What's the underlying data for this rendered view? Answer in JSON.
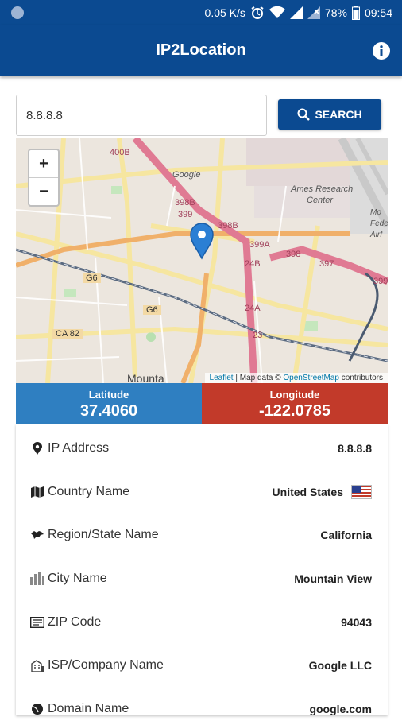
{
  "status_bar": {
    "speed": "0.05 K/s",
    "battery": "78%",
    "time": "09:54"
  },
  "app_bar": {
    "title": "IP2Location",
    "info_icon": "info-icon"
  },
  "search": {
    "value": "8.8.8.8",
    "button_label": "SEARCH",
    "button_icon": "search-icon"
  },
  "map": {
    "zoom_in": "+",
    "zoom_out": "−",
    "labels": {
      "google": "Google",
      "ames": "Ames Research",
      "center": "Center",
      "g6a": "G6",
      "g6b": "G6",
      "ca82": "CA 82",
      "city": "Mounta",
      "moffett1": "Mo",
      "moffett2": "Fede",
      "moffett3": "Airf",
      "r400b": "400B",
      "r398b": "398B",
      "r399": "399",
      "r398b2": "398B",
      "r399a": "399A",
      "r398": "398",
      "r397": "397",
      "r24b": "24B",
      "r24a": "24A",
      "r23": "23",
      "r399b": "399"
    },
    "attribution": {
      "leaflet": "Leaflet",
      "sep": " | Map data © ",
      "osm": "OpenStreetMap",
      "contrib": " contributors"
    }
  },
  "coordinates": {
    "latitude_label": "Latitude",
    "latitude_value": "37.4060",
    "longitude_label": "Longitude",
    "longitude_value": "-122.0785",
    "latitude_color": "#2f7fc1",
    "longitude_color": "#c23a2a"
  },
  "details": [
    {
      "label": "IP Address",
      "value": "8.8.8.8",
      "icon": "map-marker-icon"
    },
    {
      "label": "Country Name",
      "value": "United States",
      "icon": "map-icon"
    },
    {
      "label": "Region/State Name",
      "value": "California",
      "icon": "globe-icon"
    },
    {
      "label": "City Name",
      "value": "Mountain View",
      "icon": "city-icon"
    },
    {
      "label": "ZIP Code",
      "value": "94043",
      "icon": "postcode-icon"
    },
    {
      "label": "ISP/Company Name",
      "value": "Google LLC",
      "icon": "building-icon"
    },
    {
      "label": "Domain Name",
      "value": "google.com",
      "icon": "domain-icon"
    }
  ],
  "colors": {
    "primary": "#0b4a91"
  }
}
